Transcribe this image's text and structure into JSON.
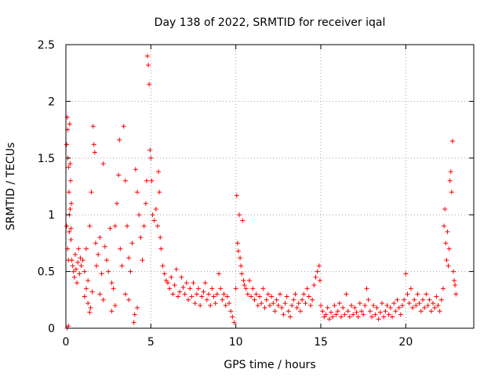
{
  "chart_data": {
    "type": "scatter",
    "title": "Day 138 of 2022, SRMTID for receiver iqal",
    "xlabel": "GPS time / hours",
    "ylabel": "SRMTID / TECUs",
    "xlim": [
      0,
      24
    ],
    "ylim": [
      0,
      2.5
    ],
    "x_ticks": [
      0,
      5,
      10,
      15,
      20
    ],
    "x_tick_labels": [
      "0",
      "5",
      "10",
      "15",
      "20"
    ],
    "y_ticks": [
      0,
      0.5,
      1,
      1.5,
      2,
      2.5
    ],
    "y_tick_labels": [
      "0",
      "0.5",
      "1",
      "1.5",
      "2",
      "2.5"
    ],
    "grid": true,
    "marker": "+",
    "marker_color": "#ff0000",
    "series": [
      {
        "name": "SRMTID",
        "points": [
          [
            0.05,
            1.62
          ],
          [
            0.08,
            1.86
          ],
          [
            0.1,
            1.75
          ],
          [
            0.12,
            1.5
          ],
          [
            0.15,
            1.42
          ],
          [
            0.18,
            1.2
          ],
          [
            0.2,
            1.0
          ],
          [
            0.22,
            1.8
          ],
          [
            0.25,
            1.45
          ],
          [
            0.28,
            1.3
          ],
          [
            0.3,
            0.88
          ],
          [
            0.32,
            1.1
          ],
          [
            0.05,
            0.9
          ],
          [
            0.1,
            0.7
          ],
          [
            0.15,
            0.6
          ],
          [
            0.2,
            0.85
          ],
          [
            0.25,
            1.05
          ],
          [
            0.3,
            0.78
          ],
          [
            0.35,
            0.6
          ],
          [
            0.4,
            0.55
          ],
          [
            0.45,
            0.5
          ],
          [
            0.5,
            0.45
          ],
          [
            0.55,
            0.65
          ],
          [
            0.6,
            0.52
          ],
          [
            0.65,
            0.4
          ],
          [
            0.7,
            0.58
          ],
          [
            0.75,
            0.7
          ],
          [
            0.8,
            0.48
          ],
          [
            0.85,
            0.62
          ],
          [
            0.9,
            0.55
          ],
          [
            0.08,
            0.0
          ],
          [
            0.15,
            0.02
          ],
          [
            1.0,
            0.6
          ],
          [
            1.1,
            0.5
          ],
          [
            1.2,
            0.7
          ],
          [
            1.3,
            0.42
          ],
          [
            1.4,
            0.9
          ],
          [
            1.5,
            1.2
          ],
          [
            1.55,
            0.32
          ],
          [
            1.6,
            1.78
          ],
          [
            1.65,
            1.62
          ],
          [
            1.7,
            1.55
          ],
          [
            1.75,
            0.75
          ],
          [
            1.8,
            0.55
          ],
          [
            1.9,
            0.65
          ],
          [
            2.0,
            0.8
          ],
          [
            2.1,
            0.48
          ],
          [
            2.2,
            1.45
          ],
          [
            2.3,
            0.72
          ],
          [
            2.4,
            0.6
          ],
          [
            2.5,
            0.5
          ],
          [
            2.6,
            0.88
          ],
          [
            2.7,
            0.4
          ],
          [
            2.8,
            0.35
          ],
          [
            2.9,
            0.9
          ],
          [
            3.0,
            1.1
          ],
          [
            3.1,
            1.35
          ],
          [
            3.15,
            1.66
          ],
          [
            3.2,
            0.7
          ],
          [
            3.3,
            0.55
          ],
          [
            3.4,
            1.78
          ],
          [
            3.5,
            1.3
          ],
          [
            3.6,
            0.9
          ],
          [
            3.7,
            0.62
          ],
          [
            3.8,
            0.5
          ],
          [
            3.9,
            0.75
          ],
          [
            4.0,
            0.05
          ],
          [
            4.05,
            0.12
          ],
          [
            1.4,
            0.14
          ],
          [
            1.45,
            0.18
          ],
          [
            1.3,
            0.22
          ],
          [
            1.2,
            0.35
          ],
          [
            1.1,
            0.28
          ],
          [
            2.0,
            0.3
          ],
          [
            2.2,
            0.25
          ],
          [
            2.7,
            0.15
          ],
          [
            2.9,
            0.2
          ],
          [
            3.5,
            0.3
          ],
          [
            3.7,
            0.25
          ],
          [
            4.2,
            0.18
          ],
          [
            4.1,
            1.4
          ],
          [
            4.2,
            1.2
          ],
          [
            4.3,
            1.0
          ],
          [
            4.4,
            0.8
          ],
          [
            4.5,
            0.6
          ],
          [
            4.6,
            0.9
          ],
          [
            4.7,
            1.1
          ],
          [
            4.75,
            1.3
          ],
          [
            4.8,
            2.4
          ],
          [
            4.85,
            2.32
          ],
          [
            4.9,
            2.15
          ],
          [
            4.95,
            1.57
          ],
          [
            5.0,
            1.5
          ],
          [
            5.05,
            1.3
          ],
          [
            5.1,
            1.0
          ],
          [
            5.2,
            0.95
          ],
          [
            5.3,
            1.05
          ],
          [
            5.4,
            0.9
          ],
          [
            5.45,
            1.38
          ],
          [
            5.5,
            1.2
          ],
          [
            5.55,
            0.8
          ],
          [
            5.6,
            0.7
          ],
          [
            5.7,
            0.55
          ],
          [
            5.8,
            0.48
          ],
          [
            5.9,
            0.42
          ],
          [
            6.0,
            0.4
          ],
          [
            6.1,
            0.35
          ],
          [
            6.2,
            0.45
          ],
          [
            6.3,
            0.3
          ],
          [
            6.4,
            0.38
          ],
          [
            6.5,
            0.52
          ],
          [
            6.6,
            0.28
          ],
          [
            6.7,
            0.32
          ],
          [
            6.8,
            0.45
          ],
          [
            6.9,
            0.36
          ],
          [
            7.0,
            0.3
          ],
          [
            7.1,
            0.4
          ],
          [
            7.2,
            0.25
          ],
          [
            7.3,
            0.35
          ],
          [
            7.4,
            0.28
          ],
          [
            7.5,
            0.4
          ],
          [
            7.6,
            0.22
          ],
          [
            7.7,
            0.3
          ],
          [
            7.8,
            0.35
          ],
          [
            7.9,
            0.2
          ],
          [
            8.0,
            0.28
          ],
          [
            8.1,
            0.32
          ],
          [
            8.2,
            0.4
          ],
          [
            8.3,
            0.25
          ],
          [
            8.4,
            0.3
          ],
          [
            8.5,
            0.2
          ],
          [
            8.6,
            0.35
          ],
          [
            8.7,
            0.28
          ],
          [
            8.8,
            0.22
          ],
          [
            8.9,
            0.3
          ],
          [
            9.0,
            0.48
          ],
          [
            9.1,
            0.35
          ],
          [
            9.2,
            0.25
          ],
          [
            9.3,
            0.3
          ],
          [
            9.4,
            0.2
          ],
          [
            9.5,
            0.28
          ],
          [
            9.6,
            0.22
          ],
          [
            9.7,
            0.15
          ],
          [
            9.8,
            0.1
          ],
          [
            9.9,
            0.05
          ],
          [
            10.0,
            0.35
          ],
          [
            10.05,
            1.17
          ],
          [
            10.1,
            0.75
          ],
          [
            10.15,
            0.68
          ],
          [
            10.2,
            1.0
          ],
          [
            10.25,
            0.62
          ],
          [
            10.3,
            0.55
          ],
          [
            10.35,
            0.48
          ],
          [
            10.4,
            0.95
          ],
          [
            10.45,
            0.42
          ],
          [
            10.5,
            0.38
          ],
          [
            10.6,
            0.35
          ],
          [
            10.7,
            0.3
          ],
          [
            10.8,
            0.42
          ],
          [
            10.9,
            0.28
          ],
          [
            11.0,
            0.35
          ],
          [
            11.1,
            0.25
          ],
          [
            11.2,
            0.3
          ],
          [
            11.3,
            0.2
          ],
          [
            11.4,
            0.28
          ],
          [
            11.5,
            0.22
          ],
          [
            11.6,
            0.35
          ],
          [
            11.7,
            0.18
          ],
          [
            11.8,
            0.25
          ],
          [
            11.9,
            0.3
          ],
          [
            12.0,
            0.2
          ],
          [
            12.1,
            0.28
          ],
          [
            12.2,
            0.22
          ],
          [
            12.3,
            0.15
          ],
          [
            12.4,
            0.25
          ],
          [
            12.5,
            0.2
          ],
          [
            12.6,
            0.3
          ],
          [
            12.7,
            0.18
          ],
          [
            12.8,
            0.12
          ],
          [
            12.9,
            0.22
          ],
          [
            13.0,
            0.28
          ],
          [
            13.1,
            0.15
          ],
          [
            13.2,
            0.1
          ],
          [
            13.3,
            0.2
          ],
          [
            13.4,
            0.25
          ],
          [
            13.5,
            0.3
          ],
          [
            13.6,
            0.18
          ],
          [
            13.7,
            0.22
          ],
          [
            13.8,
            0.15
          ],
          [
            13.9,
            0.25
          ],
          [
            14.0,
            0.3
          ],
          [
            14.1,
            0.22
          ],
          [
            14.2,
            0.35
          ],
          [
            14.3,
            0.28
          ],
          [
            14.4,
            0.2
          ],
          [
            14.5,
            0.25
          ],
          [
            14.6,
            0.38
          ],
          [
            14.7,
            0.45
          ],
          [
            14.8,
            0.5
          ],
          [
            14.9,
            0.55
          ],
          [
            14.95,
            0.42
          ],
          [
            15.0,
            0.2
          ],
          [
            15.1,
            0.15
          ],
          [
            15.2,
            0.1
          ],
          [
            15.3,
            0.12
          ],
          [
            15.4,
            0.18
          ],
          [
            15.5,
            0.08
          ],
          [
            15.6,
            0.14
          ],
          [
            15.7,
            0.1
          ],
          [
            15.8,
            0.2
          ],
          [
            15.9,
            0.12
          ],
          [
            16.0,
            0.15
          ],
          [
            16.1,
            0.22
          ],
          [
            16.2,
            0.1
          ],
          [
            16.3,
            0.18
          ],
          [
            16.4,
            0.12
          ],
          [
            16.5,
            0.3
          ],
          [
            16.6,
            0.15
          ],
          [
            16.7,
            0.1
          ],
          [
            16.8,
            0.2
          ],
          [
            16.9,
            0.12
          ],
          [
            17.0,
            0.18
          ],
          [
            17.1,
            0.14
          ],
          [
            17.2,
            0.1
          ],
          [
            17.3,
            0.22
          ],
          [
            17.4,
            0.15
          ],
          [
            17.5,
            0.12
          ],
          [
            17.6,
            0.2
          ],
          [
            17.7,
            0.35
          ],
          [
            17.8,
            0.25
          ],
          [
            17.9,
            0.15
          ],
          [
            18.0,
            0.1
          ],
          [
            18.1,
            0.2
          ],
          [
            18.2,
            0.12
          ],
          [
            18.3,
            0.18
          ],
          [
            18.4,
            0.08
          ],
          [
            18.5,
            0.14
          ],
          [
            18.6,
            0.22
          ],
          [
            18.7,
            0.1
          ],
          [
            18.8,
            0.15
          ],
          [
            18.9,
            0.2
          ],
          [
            19.0,
            0.12
          ],
          [
            19.1,
            0.18
          ],
          [
            19.2,
            0.1
          ],
          [
            19.3,
            0.22
          ],
          [
            19.4,
            0.15
          ],
          [
            19.5,
            0.25
          ],
          [
            19.6,
            0.18
          ],
          [
            19.7,
            0.12
          ],
          [
            19.8,
            0.2
          ],
          [
            19.9,
            0.25
          ],
          [
            20.0,
            0.48
          ],
          [
            20.1,
            0.3
          ],
          [
            20.2,
            0.22
          ],
          [
            20.3,
            0.35
          ],
          [
            20.4,
            0.18
          ],
          [
            20.5,
            0.25
          ],
          [
            20.6,
            0.2
          ],
          [
            20.7,
            0.3
          ],
          [
            20.8,
            0.22
          ],
          [
            20.9,
            0.15
          ],
          [
            21.0,
            0.25
          ],
          [
            21.1,
            0.18
          ],
          [
            21.2,
            0.3
          ],
          [
            21.3,
            0.2
          ],
          [
            21.4,
            0.25
          ],
          [
            21.5,
            0.15
          ],
          [
            21.6,
            0.22
          ],
          [
            21.7,
            0.18
          ],
          [
            21.8,
            0.28
          ],
          [
            21.9,
            0.2
          ],
          [
            22.0,
            0.15
          ],
          [
            22.1,
            0.25
          ],
          [
            22.2,
            0.35
          ],
          [
            22.25,
            0.9
          ],
          [
            22.3,
            1.05
          ],
          [
            22.35,
            0.75
          ],
          [
            22.4,
            0.6
          ],
          [
            22.45,
            0.85
          ],
          [
            22.5,
            0.55
          ],
          [
            22.55,
            0.7
          ],
          [
            22.6,
            1.3
          ],
          [
            22.65,
            1.38
          ],
          [
            22.7,
            1.2
          ],
          [
            22.75,
            1.65
          ],
          [
            22.8,
            0.5
          ],
          [
            22.85,
            0.42
          ],
          [
            22.9,
            0.38
          ],
          [
            22.95,
            0.3
          ]
        ]
      }
    ]
  }
}
